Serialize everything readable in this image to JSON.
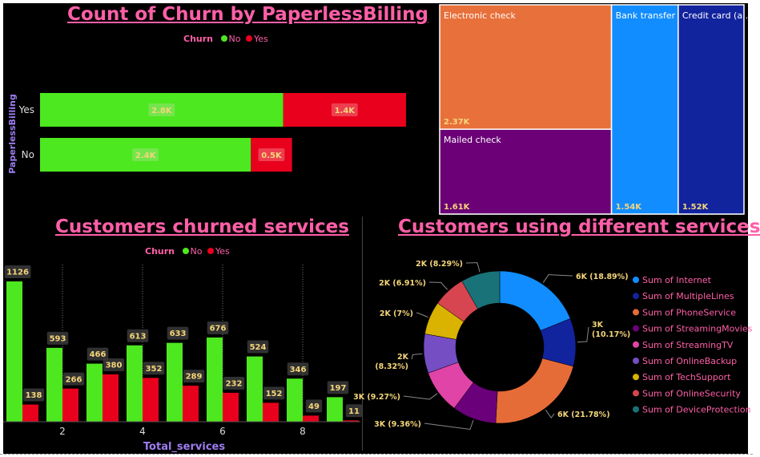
{
  "colors": {
    "no": "#4de81f",
    "yes": "#e8001c",
    "title": "#ff5fa8",
    "axis_title": "#9d7cf0",
    "label_text": "#f5d67a",
    "label_bg": "#3a3a3a"
  },
  "legend": {
    "title": "Churn",
    "no": "No",
    "yes": "Yes"
  },
  "chart_data": [
    {
      "type": "bar",
      "orientation": "horizontal",
      "stacked": true,
      "title": "Count of Churn by PaperlessBilling",
      "ylabel": "PaperlessBilling",
      "legend_position": "top-center",
      "categories": [
        "Yes",
        "No"
      ],
      "value_labels": {
        "no": [
          "2.8K",
          "2.4K"
        ],
        "yes": [
          "1.4K",
          "0.5K"
        ]
      },
      "series": [
        {
          "name": "No",
          "values": [
            2771,
            2403
          ]
        },
        {
          "name": "Yes",
          "values": [
            1400,
            469
          ]
        }
      ]
    },
    {
      "type": "treemap",
      "title": "",
      "items": [
        {
          "label": "Electronic check",
          "value_label": "2.37K",
          "value": 2365,
          "color": "#e8703a"
        },
        {
          "label": "Mailed check",
          "value_label": "1.61K",
          "value": 1612,
          "color": "#6b0077"
        },
        {
          "label": "Bank transfer ...",
          "value_label": "1.54K",
          "value": 1544,
          "color": "#118dff"
        },
        {
          "label": "Credit card (a...",
          "value_label": "1.52K",
          "value": 1522,
          "color": "#12239e"
        }
      ]
    },
    {
      "type": "bar",
      "orientation": "vertical",
      "title": "Customers churned services",
      "xlabel": "Total_services",
      "legend_position": "top-center",
      "grid": false,
      "categories": [
        1,
        2,
        3,
        4,
        5,
        6,
        7,
        8,
        9
      ],
      "x_tick_labels": [
        "2",
        "4",
        "6",
        "8"
      ],
      "series": [
        {
          "name": "No",
          "values": [
            1126,
            593,
            466,
            613,
            633,
            676,
            524,
            346,
            197
          ]
        },
        {
          "name": "Yes",
          "values": [
            138,
            266,
            380,
            352,
            289,
            232,
            152,
            49,
            11
          ]
        }
      ],
      "ylim": [
        0,
        1180
      ]
    },
    {
      "type": "donut",
      "title": "Customers using different services",
      "legend_position": "right",
      "slices": [
        {
          "name": "Sum of Internet",
          "label": "6K (18.89%)",
          "percent": 18.89,
          "color": "#118dff"
        },
        {
          "name": "Sum of MultipleLines",
          "label": "3K (10.17%)",
          "percent": 10.17,
          "color": "#12239e"
        },
        {
          "name": "Sum of PhoneService",
          "label": "6K (21.78%)",
          "percent": 21.78,
          "color": "#e66c37"
        },
        {
          "name": "Sum of StreamingMovies",
          "label": "3K (9.36%)",
          "percent": 9.36,
          "color": "#6b007b"
        },
        {
          "name": "Sum of StreamingTV",
          "label": "3K (9.27%)",
          "percent": 9.27,
          "color": "#e044a7"
        },
        {
          "name": "Sum of OnlineBackup",
          "label": "2K (8.32%)",
          "percent": 8.32,
          "color": "#744ec2"
        },
        {
          "name": "Sum of TechSupport",
          "label": "2K (7%)",
          "percent": 7.0,
          "color": "#d9b300"
        },
        {
          "name": "Sum of OnlineSecurity",
          "label": "2K (6.91%)",
          "percent": 6.91,
          "color": "#d64550"
        },
        {
          "name": "Sum of DeviceProtection",
          "label": "2K (8.29%)",
          "percent": 8.29,
          "color": "#197278"
        }
      ]
    }
  ]
}
